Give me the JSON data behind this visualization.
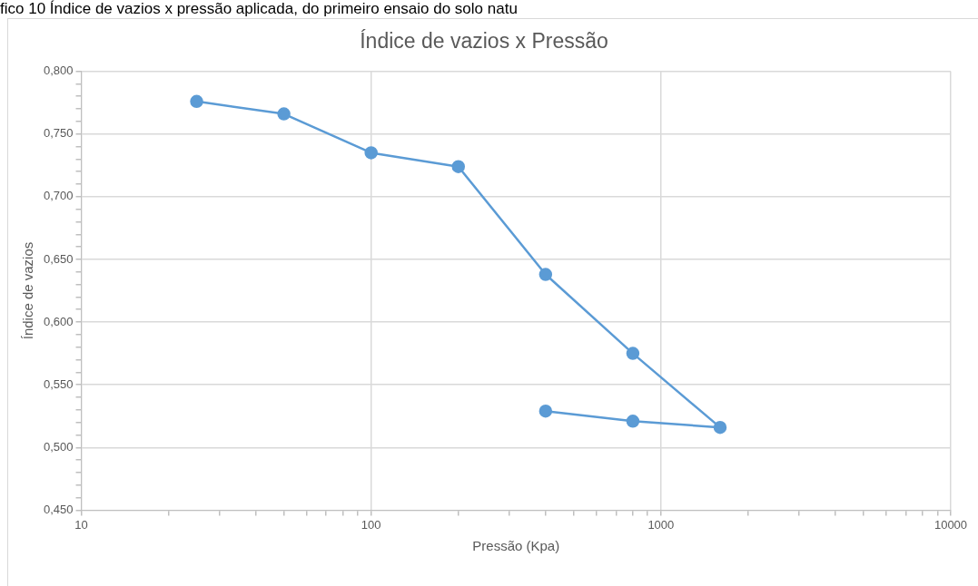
{
  "chart_data": {
    "type": "line",
    "title": "Índice de vazios x Pressão",
    "xlabel": "Pressão (Kpa)",
    "ylabel": "Índice de vazios",
    "annotations": [
      "fico 10 Índice de vazios x pressão aplicada, do primeiro ensaio do solo natu"
    ],
    "log": "x",
    "grid": true,
    "legend": false,
    "marker": "circle",
    "line_style": "solid",
    "xlim": [
      10,
      10000
    ],
    "ylim": [
      0.45,
      0.8
    ],
    "xticks": [
      10,
      {
        "value": 20,
        "label": null
      },
      {
        "value": 30,
        "label": null
      },
      {
        "value": 40,
        "label": null
      },
      {
        "value": 50,
        "label": null
      },
      {
        "value": 60,
        "label": null
      },
      {
        "value": 70,
        "label": null
      },
      {
        "value": 80,
        "label": null
      },
      {
        "value": 90,
        "label": null
      },
      100,
      {
        "value": 200,
        "label": null
      },
      {
        "value": 300,
        "label": null
      },
      {
        "value": 400,
        "label": null
      },
      {
        "value": 500,
        "label": null
      },
      {
        "value": 600,
        "label": null
      },
      {
        "value": 700,
        "label": null
      },
      {
        "value": 800,
        "label": null
      },
      {
        "value": 900,
        "label": null
      },
      1000,
      {
        "value": 2000,
        "label": null
      },
      {
        "value": 3000,
        "label": null
      },
      {
        "value": 4000,
        "label": null
      },
      {
        "value": 5000,
        "label": null
      },
      {
        "value": 6000,
        "label": null
      },
      {
        "value": 7000,
        "label": null
      },
      {
        "value": 8000,
        "label": null
      },
      {
        "value": 9000,
        "label": null
      },
      10000
    ],
    "yticks": [
      {
        "value": 0.45,
        "label": "0,450"
      },
      {
        "value": 0.46,
        "label": null
      },
      {
        "value": 0.47,
        "label": null
      },
      {
        "value": 0.48,
        "label": null
      },
      {
        "value": 0.49,
        "label": null
      },
      {
        "value": 0.5,
        "label": "0,500"
      },
      {
        "value": 0.51,
        "label": null
      },
      {
        "value": 0.52,
        "label": null
      },
      {
        "value": 0.53,
        "label": null
      },
      {
        "value": 0.54,
        "label": null
      },
      {
        "value": 0.55,
        "label": "0,550"
      },
      {
        "value": 0.56,
        "label": null
      },
      {
        "value": 0.57,
        "label": null
      },
      {
        "value": 0.58,
        "label": null
      },
      {
        "value": 0.59,
        "label": null
      },
      {
        "value": 0.6,
        "label": "0,600"
      },
      {
        "value": 0.61,
        "label": null
      },
      {
        "value": 0.62,
        "label": null
      },
      {
        "value": 0.63,
        "label": null
      },
      {
        "value": 0.64,
        "label": null
      },
      {
        "value": 0.65,
        "label": "0,650"
      },
      {
        "value": 0.66,
        "label": null
      },
      {
        "value": 0.67,
        "label": null
      },
      {
        "value": 0.68,
        "label": null
      },
      {
        "value": 0.69,
        "label": null
      },
      {
        "value": 0.7,
        "label": "0,700"
      },
      {
        "value": 0.71,
        "label": null
      },
      {
        "value": 0.72,
        "label": null
      },
      {
        "value": 0.73,
        "label": null
      },
      {
        "value": 0.74,
        "label": null
      },
      {
        "value": 0.75,
        "label": "0,750"
      },
      {
        "value": 0.76,
        "label": null
      },
      {
        "value": 0.77,
        "label": null
      },
      {
        "value": 0.78,
        "label": null
      },
      {
        "value": 0.79,
        "label": null
      },
      {
        "value": 0.8,
        "label": "0,800"
      }
    ],
    "series": [
      {
        "color": "#5b9bd5",
        "x": [
          25,
          50,
          100,
          200,
          400,
          800,
          1600,
          800,
          400
        ],
        "values": [
          0.776,
          0.766,
          0.735,
          0.724,
          0.638,
          0.575,
          0.516,
          0.521,
          0.529
        ]
      }
    ]
  }
}
